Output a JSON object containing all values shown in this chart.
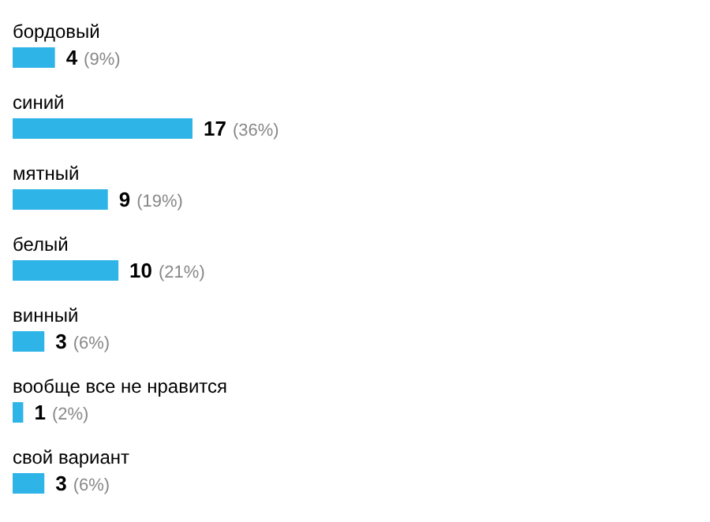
{
  "chart_data": {
    "type": "bar",
    "orientation": "horizontal",
    "categories": [
      "бордовый",
      "синий",
      "мятный",
      "белый",
      "винный",
      "вообще все не нравится",
      "свой вариант"
    ],
    "values": [
      4,
      17,
      9,
      10,
      3,
      1,
      3
    ],
    "value_labels": [
      "4 (9%)",
      "17 (36%)",
      "9 (19%)",
      "10 (21%)",
      "3 (6%)",
      "1 (2%)",
      "3 (6%)"
    ],
    "color": "#2fb4e8",
    "grid": false,
    "legend": false
  }
}
